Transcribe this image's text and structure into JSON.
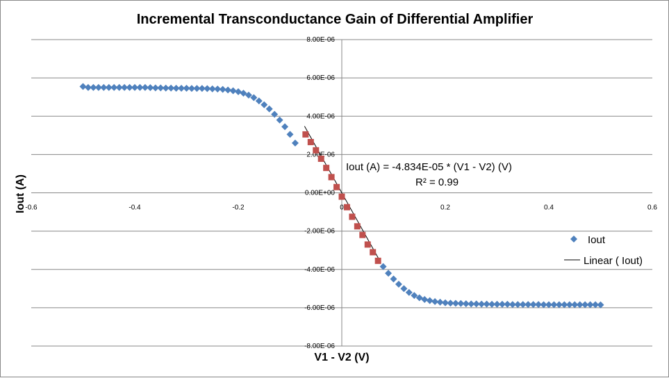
{
  "chart_data": {
    "type": "scatter",
    "title": "Incremental Transconductance Gain of Differential Amplifier",
    "xlabel": "V1 - V2 (V)",
    "ylabel": "Iout (A)",
    "xlim": [
      -0.6,
      0.6
    ],
    "ylim": [
      -8e-06,
      8e-06
    ],
    "x_ticks": [
      "-0.6",
      "-0.4",
      "-0.2",
      "0",
      "0.2",
      "0.4",
      "0.6"
    ],
    "y_ticks": [
      "8.00E-06",
      "6.00E-06",
      "4.00E-06",
      "2.00E-06",
      "0.00E+00",
      "-2.00E-06",
      "-4.00E-06",
      "-6.00E-06",
      "-8.00E-06"
    ],
    "grid": "horizontal",
    "legend_position": "right",
    "colors": {
      "iout": "#4f81bd",
      "linear_points": "#c0504d",
      "trendline": "#000000"
    },
    "series": [
      {
        "name": "Iout",
        "marker": "diamond",
        "x": [
          -0.5,
          -0.49,
          -0.48,
          -0.47,
          -0.46,
          -0.45,
          -0.44,
          -0.43,
          -0.42,
          -0.41,
          -0.4,
          -0.39,
          -0.38,
          -0.37,
          -0.36,
          -0.35,
          -0.34,
          -0.33,
          -0.32,
          -0.31,
          -0.3,
          -0.29,
          -0.28,
          -0.27,
          -0.26,
          -0.25,
          -0.24,
          -0.23,
          -0.22,
          -0.21,
          -0.2,
          -0.19,
          -0.18,
          -0.17,
          -0.16,
          -0.15,
          -0.14,
          -0.13,
          -0.12,
          -0.11,
          -0.1,
          -0.09,
          0.08,
          0.09,
          0.1,
          0.11,
          0.12,
          0.13,
          0.14,
          0.15,
          0.16,
          0.17,
          0.18,
          0.19,
          0.2,
          0.21,
          0.22,
          0.23,
          0.24,
          0.25,
          0.26,
          0.27,
          0.28,
          0.29,
          0.3,
          0.31,
          0.32,
          0.33,
          0.34,
          0.35,
          0.36,
          0.37,
          0.38,
          0.39,
          0.4,
          0.41,
          0.42,
          0.43,
          0.44,
          0.45,
          0.46,
          0.47,
          0.48,
          0.49,
          0.5
        ],
        "y": [
          5.55e-06,
          5.5e-06,
          5.5e-06,
          5.5e-06,
          5.5e-06,
          5.5e-06,
          5.5e-06,
          5.5e-06,
          5.5e-06,
          5.5e-06,
          5.5e-06,
          5.5e-06,
          5.5e-06,
          5.49e-06,
          5.48e-06,
          5.48e-06,
          5.47e-06,
          5.47e-06,
          5.46e-06,
          5.46e-06,
          5.46e-06,
          5.45e-06,
          5.45e-06,
          5.45e-06,
          5.44e-06,
          5.43e-06,
          5.42e-06,
          5.4e-06,
          5.37e-06,
          5.33e-06,
          5.28e-06,
          5.2e-06,
          5.1e-06,
          4.97e-06,
          4.8e-06,
          4.6e-06,
          4.38e-06,
          4.1e-06,
          3.8e-06,
          3.45e-06,
          3.05e-06,
          2.6e-06,
          -3.85e-06,
          -4.2e-06,
          -4.5e-06,
          -4.77e-06,
          -5e-06,
          -5.2e-06,
          -5.36e-06,
          -5.48e-06,
          -5.57e-06,
          -5.63e-06,
          -5.68e-06,
          -5.71e-06,
          -5.74e-06,
          -5.76e-06,
          -5.77e-06,
          -5.78e-06,
          -5.79e-06,
          -5.8e-06,
          -5.8e-06,
          -5.81e-06,
          -5.81e-06,
          -5.82e-06,
          -5.82e-06,
          -5.82e-06,
          -5.82e-06,
          -5.83e-06,
          -5.83e-06,
          -5.83e-06,
          -5.83e-06,
          -5.83e-06,
          -5.83e-06,
          -5.84e-06,
          -5.84e-06,
          -5.84e-06,
          -5.84e-06,
          -5.84e-06,
          -5.84e-06,
          -5.84e-06,
          -5.84e-06,
          -5.84e-06,
          -5.84e-06,
          -5.84e-06,
          -5.85e-06
        ]
      },
      {
        "marker": "square",
        "x": [
          -0.07,
          -0.06,
          -0.05,
          -0.04,
          -0.03,
          -0.02,
          -0.01,
          0.0,
          0.01,
          0.02,
          0.03,
          0.04,
          0.05,
          0.06,
          0.07
        ],
        "y": [
          3.05e-06,
          2.65e-06,
          2.22e-06,
          1.78e-06,
          1.3e-06,
          8.2e-07,
          3e-07,
          -2e-07,
          -7.5e-07,
          -1.25e-06,
          -1.75e-06,
          -2.2e-06,
          -2.7e-06,
          -3.1e-06,
          -3.55e-06
        ]
      },
      {
        "name": "Linear ( Iout)",
        "type": "trendline",
        "slope": -4.834e-05,
        "x": [
          -0.072,
          0.072
        ],
        "y": [
          3.48e-06,
          -3.48e-06
        ]
      }
    ],
    "annotations": [
      "Iout (A)  = -4.834E-05 * (V1 - V2) (V)",
      "R² = 0.99"
    ]
  }
}
